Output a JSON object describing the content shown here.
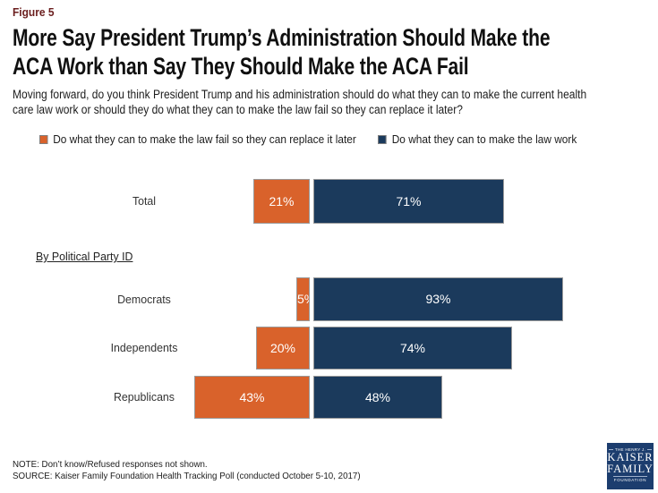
{
  "header": {
    "figure_label": "Figure 5",
    "title_lines": [
      "More Say President Trump’s Administration Should Make the",
      "ACA Work than Say They Should Make the ACA Fail"
    ],
    "subtitle_lines": [
      "Moving forward, do you think President Trump and his administration should do what they can to make the current health",
      "care law work or should they do what they can to make the law fail so they can replace it later?"
    ]
  },
  "legend": {
    "items": [
      {
        "label": "Do what they can to make the law fail so they can replace it later",
        "color": "#D9622B"
      },
      {
        "label": "Do what they can to make the law work",
        "color": "#1B3A5C"
      }
    ]
  },
  "chart_data": {
    "type": "bar",
    "orientation": "horizontal-diverging",
    "categories": [
      "Total",
      "Democrats",
      "Independents",
      "Republicans"
    ],
    "series": [
      {
        "name": "Do what they can to make the law fail so they can replace it later",
        "color": "#D9622B",
        "values": [
          21,
          5,
          20,
          43
        ]
      },
      {
        "name": "Do what they can to make the law work",
        "color": "#1B3A5C",
        "values": [
          71,
          93,
          74,
          48
        ]
      }
    ],
    "group_label": "By Political Party ID",
    "value_suffix": "%",
    "axis": "values labeled on bars, no gridlines, diverging from center",
    "legend_position": "top"
  },
  "footer": {
    "note": "NOTE: Don’t know/Refused responses not shown.",
    "source": "SOURCE: Kaiser Family Foundation Health Tracking Poll (conducted October 5-10, 2017)"
  },
  "logo": {
    "line1": "THE HENRY J.",
    "line2": "KAISER",
    "line3": "FAMILY",
    "line4": "FOUNDATION"
  },
  "colors": {
    "figure_label": "#6B1E1E",
    "orange": "#D9622B",
    "navy": "#1B3A5C",
    "logo_background": "#1C3D6E"
  }
}
